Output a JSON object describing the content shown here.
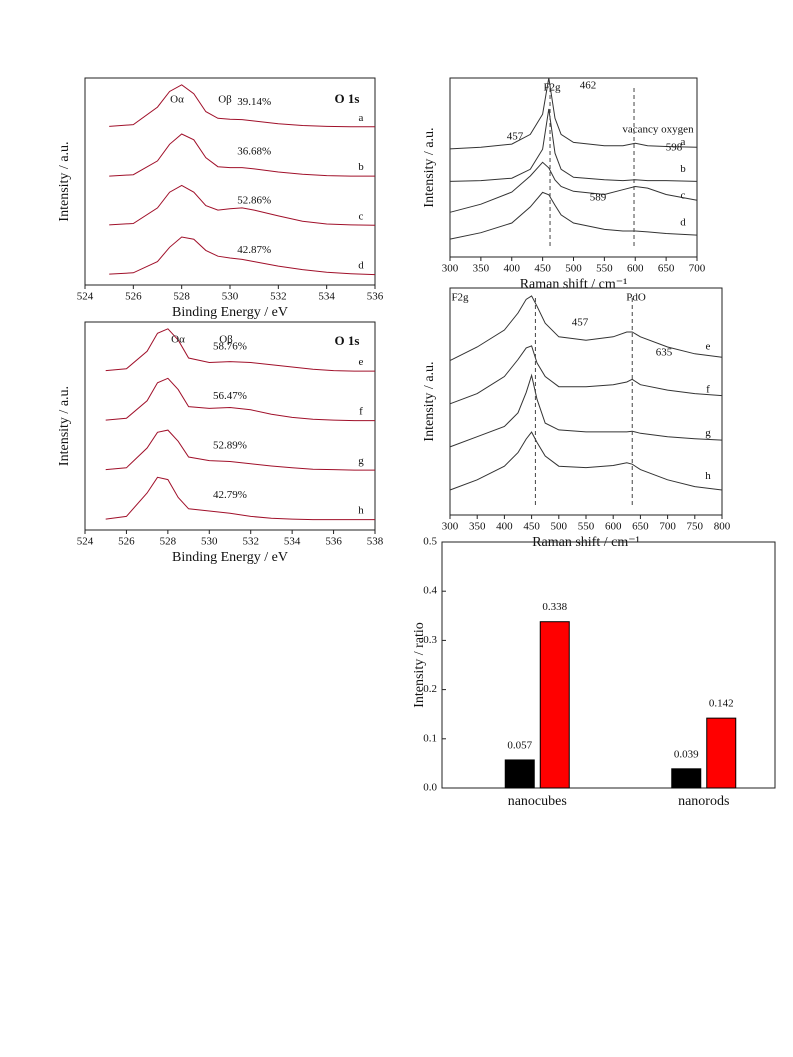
{
  "chart_data": [
    {
      "type": "line",
      "xlabel": "Binding Energy / eV",
      "ylabel": "Intensity / a.u.",
      "annotations": [
        "Oα",
        "Oβ",
        "O 1s"
      ],
      "xlim": [
        524,
        536
      ],
      "xticks": [
        524,
        526,
        528,
        530,
        532,
        534,
        536
      ],
      "x": [
        525,
        526,
        527,
        527.5,
        528,
        528.5,
        529,
        529.5,
        530,
        530.5,
        531,
        532,
        533,
        534,
        535,
        536
      ],
      "series": [
        {
          "name": "a",
          "annotation": "39.14%",
          "color": "#a0102a",
          "values": [
            0.02,
            0.06,
            0.45,
            0.8,
            0.95,
            0.75,
            0.35,
            0.2,
            0.18,
            0.17,
            0.14,
            0.08,
            0.04,
            0.02,
            0.01,
            0.01
          ]
        },
        {
          "name": "b",
          "annotation": "36.68%",
          "color": "#a0102a",
          "values": [
            0.01,
            0.04,
            0.35,
            0.72,
            0.95,
            0.82,
            0.42,
            0.22,
            0.2,
            0.2,
            0.17,
            0.1,
            0.05,
            0.02,
            0.01,
            0.01
          ]
        },
        {
          "name": "c",
          "annotation": "52.86%",
          "color": "#a0102a",
          "values": [
            0.02,
            0.05,
            0.4,
            0.75,
            0.9,
            0.75,
            0.45,
            0.35,
            0.38,
            0.4,
            0.35,
            0.22,
            0.1,
            0.04,
            0.02,
            0.01
          ]
        },
        {
          "name": "d",
          "annotation": "42.87%",
          "color": "#a0102a",
          "values": [
            0.02,
            0.05,
            0.3,
            0.62,
            0.85,
            0.8,
            0.55,
            0.42,
            0.38,
            0.35,
            0.3,
            0.2,
            0.12,
            0.06,
            0.03,
            0.01
          ]
        }
      ]
    },
    {
      "type": "line",
      "xlabel": "Binding Energy / eV",
      "ylabel": "Intensity / a.u.",
      "annotations": [
        "Oα",
        "Oβ",
        "O 1s"
      ],
      "xlim": [
        524,
        538
      ],
      "xticks": [
        524,
        526,
        528,
        530,
        532,
        534,
        536,
        538
      ],
      "x": [
        525,
        526,
        527,
        527.5,
        528,
        528.5,
        529,
        530,
        531,
        532,
        533,
        534,
        535,
        536,
        537,
        538
      ],
      "series": [
        {
          "name": "e",
          "annotation": "58.76%",
          "color": "#a0102a",
          "values": [
            0.02,
            0.06,
            0.45,
            0.85,
            0.95,
            0.7,
            0.3,
            0.2,
            0.22,
            0.2,
            0.15,
            0.1,
            0.05,
            0.02,
            0.01,
            0.01
          ]
        },
        {
          "name": "f",
          "annotation": "56.47%",
          "color": "#a0102a",
          "values": [
            0.02,
            0.06,
            0.45,
            0.85,
            0.95,
            0.7,
            0.32,
            0.28,
            0.3,
            0.25,
            0.15,
            0.08,
            0.04,
            0.02,
            0.01,
            0.01
          ]
        },
        {
          "name": "g",
          "annotation": "52.89%",
          "color": "#a0102a",
          "values": [
            0.02,
            0.06,
            0.5,
            0.85,
            0.9,
            0.65,
            0.3,
            0.22,
            0.2,
            0.15,
            0.1,
            0.06,
            0.03,
            0.02,
            0.01,
            0.01
          ]
        },
        {
          "name": "h",
          "annotation": "42.79%",
          "color": "#a0102a",
          "values": [
            0.02,
            0.08,
            0.6,
            0.95,
            0.9,
            0.5,
            0.25,
            0.2,
            0.15,
            0.08,
            0.04,
            0.02,
            0.01,
            0.01,
            0.01,
            0.01
          ]
        }
      ]
    },
    {
      "type": "line",
      "xlabel": "Raman shift / cm⁻¹",
      "ylabel": "Intensity / a.u.",
      "annotations": [
        "F2g",
        "457",
        "vacancy oxygen",
        "589"
      ],
      "reference_lines": [
        462,
        598
      ],
      "xlim": [
        300,
        700
      ],
      "xticks": [
        300,
        350,
        400,
        450,
        500,
        550,
        600,
        650,
        700
      ],
      "x": [
        300,
        350,
        400,
        430,
        450,
        460,
        470,
        480,
        500,
        550,
        580,
        600,
        620,
        650,
        700
      ],
      "series": [
        {
          "name": "a",
          "color": "#333333",
          "values": [
            0.12,
            0.14,
            0.18,
            0.3,
            0.55,
            1.0,
            0.5,
            0.3,
            0.2,
            0.16,
            0.16,
            0.19,
            0.16,
            0.15,
            0.14
          ]
        },
        {
          "name": "b",
          "color": "#333333",
          "values": [
            0.05,
            0.06,
            0.09,
            0.2,
            0.45,
            0.95,
            0.4,
            0.2,
            0.1,
            0.07,
            0.06,
            0.07,
            0.06,
            0.06,
            0.05
          ]
        },
        {
          "name": "c",
          "color": "#333333",
          "values": [
            0.0,
            0.1,
            0.25,
            0.45,
            0.62,
            0.55,
            0.4,
            0.32,
            0.26,
            0.22,
            0.28,
            0.32,
            0.3,
            0.22,
            0.15
          ]
        },
        {
          "name": "d",
          "color": "#333333",
          "values": [
            0.0,
            0.08,
            0.2,
            0.4,
            0.58,
            0.55,
            0.42,
            0.3,
            0.2,
            0.12,
            0.1,
            0.1,
            0.09,
            0.07,
            0.05
          ]
        }
      ]
    },
    {
      "type": "line",
      "xlabel": "Raman shift / cm⁻¹",
      "ylabel": "Intensity / a.u.",
      "annotations": [
        "F2g",
        "PdO"
      ],
      "reference_lines": [
        457,
        635
      ],
      "xlim": [
        300,
        800
      ],
      "xticks": [
        300,
        350,
        400,
        450,
        500,
        550,
        600,
        650,
        700,
        750,
        800
      ],
      "x": [
        300,
        350,
        400,
        425,
        440,
        450,
        460,
        475,
        500,
        550,
        600,
        625,
        635,
        650,
        700,
        750,
        800
      ],
      "series": [
        {
          "name": "e",
          "color": "#333333",
          "values": [
            0.0,
            0.2,
            0.45,
            0.7,
            0.9,
            0.95,
            0.8,
            0.55,
            0.35,
            0.3,
            0.35,
            0.42,
            0.42,
            0.35,
            0.2,
            0.1,
            0.05
          ]
        },
        {
          "name": "f",
          "color": "#333333",
          "values": [
            0.0,
            0.15,
            0.4,
            0.65,
            0.82,
            0.85,
            0.6,
            0.4,
            0.25,
            0.25,
            0.28,
            0.32,
            0.36,
            0.28,
            0.2,
            0.15,
            0.12
          ]
        },
        {
          "name": "g",
          "color": "#333333",
          "values": [
            0.0,
            0.15,
            0.3,
            0.5,
            0.8,
            1.05,
            0.7,
            0.35,
            0.25,
            0.22,
            0.22,
            0.22,
            0.23,
            0.2,
            0.15,
            0.12,
            0.1
          ]
        },
        {
          "name": "h",
          "color": "#333333",
          "values": [
            0.0,
            0.15,
            0.35,
            0.55,
            0.75,
            0.85,
            0.7,
            0.5,
            0.35,
            0.33,
            0.36,
            0.4,
            0.38,
            0.3,
            0.15,
            0.05,
            0.0
          ]
        }
      ]
    },
    {
      "type": "bar",
      "ylabel": "Intensity / ratio",
      "categories": [
        "nanocubes",
        "nanorods"
      ],
      "ylim": [
        0,
        0.5
      ],
      "yticks": [
        {
          "value": 0,
          "label": "0.0"
        },
        0.1,
        0.2,
        0.3,
        0.4,
        0.5
      ],
      "series": [
        {
          "color": "#000000",
          "values": [
            0.057,
            0.039
          ]
        },
        {
          "color": "#ff0000",
          "values": [
            0.338,
            0.142
          ]
        }
      ]
    }
  ]
}
